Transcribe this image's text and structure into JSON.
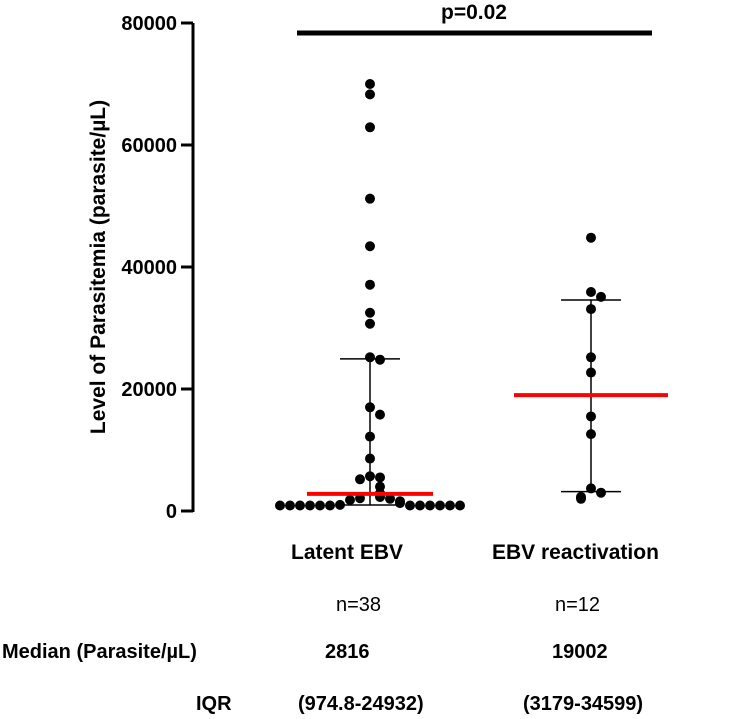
{
  "chart_data": {
    "type": "scatter",
    "ylabel": "Level of  Parasitemia (parasite/µL)",
    "ylim": [
      0,
      80000
    ],
    "yticks": [
      "0",
      "20000",
      "40000",
      "60000",
      "80000"
    ],
    "ytick_values": [
      0,
      20000,
      40000,
      60000,
      80000
    ],
    "categories": [
      "Latent EBV",
      "EBV reactivation"
    ],
    "series": [
      {
        "name": "Latent EBV",
        "values": [
          70000,
          68300,
          62900,
          51200,
          43400,
          37100,
          32500,
          30700,
          25200,
          24800,
          17000,
          15800,
          12200,
          8600,
          5700,
          5200,
          5500,
          4000,
          2900,
          2300,
          2100,
          2000,
          1800,
          1600,
          1300,
          1000,
          900,
          900,
          900,
          900,
          900,
          900,
          900,
          900,
          900,
          900,
          900,
          900
        ],
        "median": 2816,
        "iqr": [
          974.8,
          24932
        ],
        "color": "#e31a1c"
      },
      {
        "name": "EBV reactivation",
        "values": [
          44800,
          35900,
          35100,
          33100,
          25200,
          22700,
          15500,
          12600,
          3700,
          3000,
          2300,
          2000
        ],
        "median": 19002,
        "iqr": [
          3179,
          34599
        ],
        "color": "#e31a1c"
      }
    ],
    "annotation": "p=0.02"
  },
  "stats": {
    "n": [
      "n=38",
      "n=12"
    ],
    "median_label": "Median (Parasite/µL)",
    "median_values": [
      "2816",
      "19002"
    ],
    "iqr_label": "IQR",
    "iqr_values": [
      "(974.8-24932)",
      "(3179-34599)"
    ]
  },
  "colors": {
    "median_line": "#ff0000",
    "points": "#000000"
  }
}
